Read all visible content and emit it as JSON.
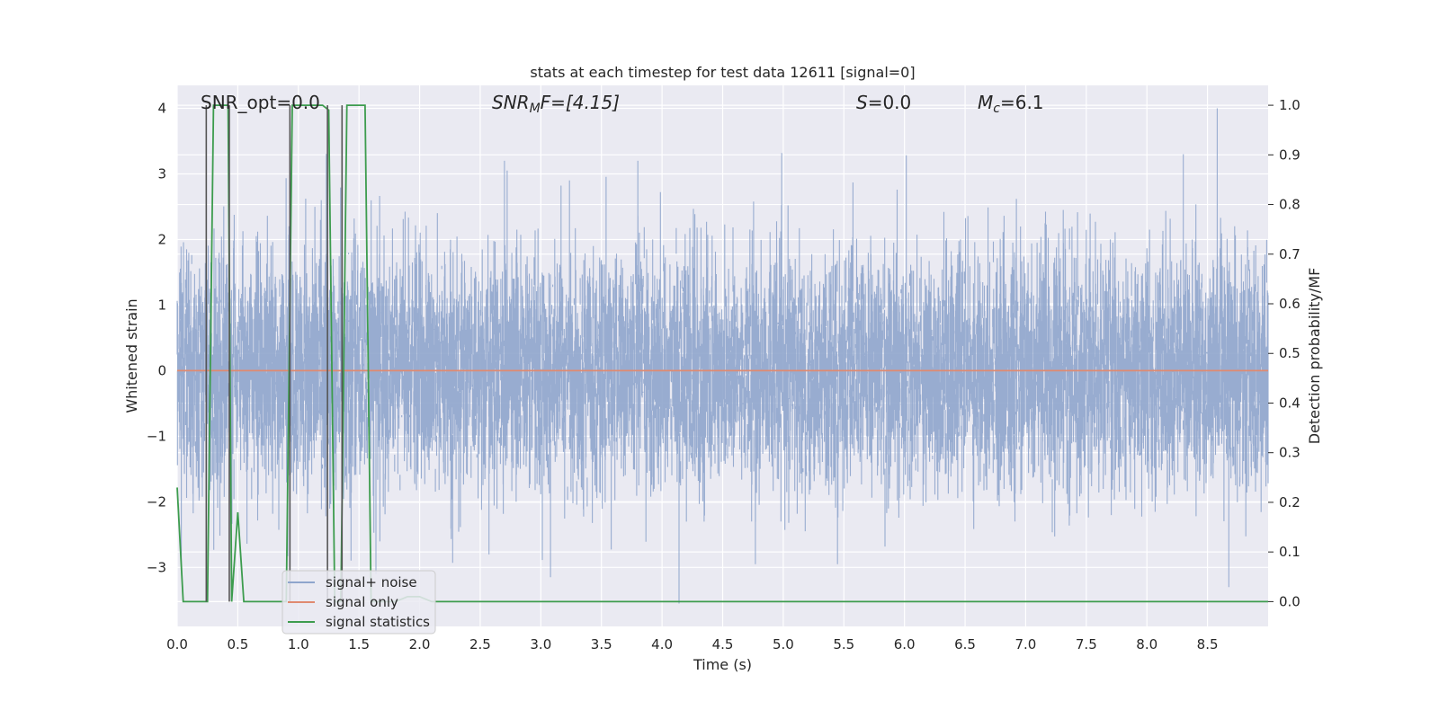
{
  "chart_data": {
    "type": "line",
    "title": "stats at each timestep for test data 12611 [signal=0]",
    "xlabel": "Time (s)",
    "ylabel": "Whitened strain",
    "ylabel_right": "Detection probability/MF",
    "xlim": [
      0.0,
      9.0
    ],
    "ylim": [
      -3.9,
      4.35
    ],
    "ylim_right": [
      -0.05,
      1.04
    ],
    "x_ticks": [
      0.0,
      0.5,
      1.0,
      1.5,
      2.0,
      2.5,
      3.0,
      3.5,
      4.0,
      4.5,
      5.0,
      5.5,
      6.0,
      6.5,
      7.0,
      7.5,
      8.0,
      8.5
    ],
    "x_tick_labels": [
      "0.0",
      "0.5",
      "1.0",
      "1.5",
      "2.0",
      "2.5",
      "3.0",
      "3.5",
      "4.0",
      "4.5",
      "5.0",
      "5.5",
      "6.0",
      "6.5",
      "7.0",
      "7.5",
      "8.0",
      "8.5"
    ],
    "y_ticks": [
      4,
      3,
      2,
      1,
      0,
      -1,
      -2,
      -3
    ],
    "y_tick_labels": [
      "4",
      "3",
      "2",
      "1",
      "0",
      "−1",
      "−2",
      "−3"
    ],
    "y_right_ticks": [
      1.0,
      0.9,
      0.8,
      0.7,
      0.6,
      0.5,
      0.4,
      0.3,
      0.2,
      0.1,
      0.0
    ],
    "y_right_tick_labels": [
      "1.0",
      "0.9",
      "0.8",
      "0.7",
      "0.6",
      "0.5",
      "0.4",
      "0.3",
      "0.2",
      "0.1",
      "0.0"
    ],
    "grid": true,
    "legend": "lower-left",
    "annotations": {
      "snr_opt": "SNR_opt=0.0",
      "snr_mf_main": "SNR",
      "snr_mf_sub": "M",
      "snr_mf_rest": "F=[4.15]",
      "s_italic": "S",
      "s_rest": "=0.0",
      "mc_italic": "M",
      "mc_sub": "c",
      "mc_rest": "=6.1"
    },
    "series": [
      {
        "name": "signal+ noise",
        "color": "#8fa5cc",
        "description_amplitude": 1.4,
        "peak_max": 4.0,
        "peak_min": -3.3
      },
      {
        "name": "signal only",
        "color": "#e08a70",
        "x": [
          0.0,
          9.0
        ],
        "y": [
          0.0,
          0.0
        ]
      },
      {
        "name": "signal statistics",
        "color": "#3d9c4e",
        "axis": "right",
        "x": [
          0.0,
          0.05,
          0.25,
          0.3,
          0.42,
          0.45,
          0.5,
          0.55,
          0.6,
          0.75,
          0.9,
          0.95,
          1.0,
          1.2,
          1.25,
          1.3,
          1.35,
          1.4,
          1.55,
          1.6,
          1.65,
          1.8,
          1.9,
          2.0,
          2.1,
          2.5,
          9.0
        ],
        "y": [
          0.23,
          0.0,
          0.0,
          1.0,
          1.0,
          0.0,
          0.18,
          0.0,
          0.0,
          0.0,
          0.0,
          1.0,
          1.0,
          1.0,
          0.99,
          0.0,
          0.0,
          1.0,
          1.0,
          0.0,
          0.0,
          0.0,
          0.01,
          0.01,
          0.0,
          0.0,
          0.0
        ]
      },
      {
        "name": "",
        "color": "#555555",
        "axis": "right",
        "type": "vlines",
        "x": [
          0.24,
          0.43,
          0.93,
          1.24,
          1.36
        ],
        "y": [
          1.0,
          1.0,
          1.0,
          1.0,
          1.0
        ]
      }
    ]
  }
}
